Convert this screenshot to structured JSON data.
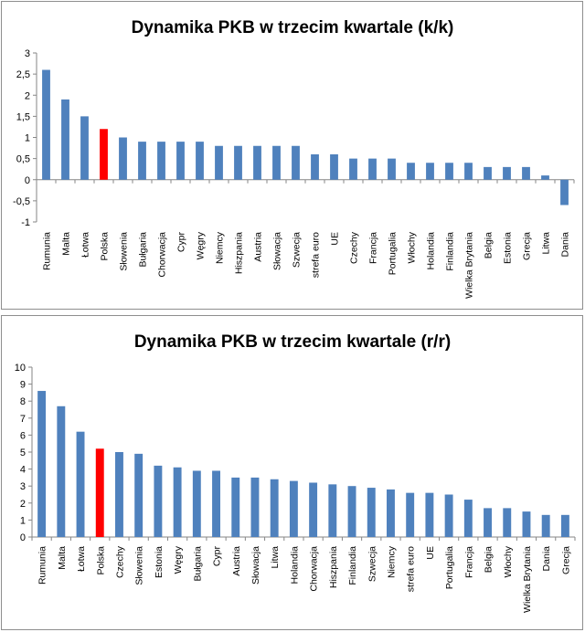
{
  "chart_data": [
    {
      "type": "bar",
      "title": "Dynamika PKB w trzecim kwartale (k/k)",
      "categories": [
        "Rumunia",
        "Malta",
        "Łotwa",
        "Polska",
        "Słowenia",
        "Bułgaria",
        "Chorwacja",
        "Cypr",
        "Węgry",
        "Niemcy",
        "Hiszpania",
        "Austria",
        "Słowacja",
        "Szwecja",
        "strefa euro",
        "UE",
        "Czechy",
        "Francja",
        "Portugalia",
        "Włochy",
        "Holandia",
        "Finlandia",
        "Wielka Brytania",
        "Belgia",
        "Estonia",
        "Grecja",
        "Litwa",
        "Dania"
      ],
      "values": [
        2.6,
        1.9,
        1.5,
        1.2,
        1.0,
        0.9,
        0.9,
        0.9,
        0.9,
        0.8,
        0.8,
        0.8,
        0.8,
        0.8,
        0.6,
        0.6,
        0.5,
        0.5,
        0.5,
        0.4,
        0.4,
        0.4,
        0.4,
        0.3,
        0.3,
        0.3,
        0.1,
        -0.6
      ],
      "ylim": [
        -1,
        3
      ],
      "yticks": [
        "-1",
        "-0,5",
        "0",
        "0,5",
        "1",
        "1,5",
        "2",
        "2,5",
        "3"
      ],
      "ytick_values": [
        -1,
        -0.5,
        0,
        0.5,
        1,
        1.5,
        2,
        2.5,
        3
      ],
      "highlight": "Polska",
      "bar_color": "#4f81bd",
      "highlight_color": "#ff0000",
      "xlabel": "",
      "ylabel": "",
      "grid": false,
      "legend": "none"
    },
    {
      "type": "bar",
      "title": "Dynamika PKB w trzecim kwartale (r/r)",
      "categories": [
        "Rumunia",
        "Malta",
        "Łotwa",
        "Polska",
        "Czechy",
        "Słowenia",
        "Estonia",
        "Węgry",
        "Bułgaria",
        "Cypr",
        "Austria",
        "Słowacja",
        "Litwa",
        "Holandia",
        "Chorwacja",
        "Hiszpania",
        "Finlandia",
        "Szwecja",
        "Niemcy",
        "strefa euro",
        "UE",
        "Portugalia",
        "Francja",
        "Belgia",
        "Włochy",
        "Wielka Brytania",
        "Dania",
        "Grecja"
      ],
      "values": [
        8.6,
        7.7,
        6.2,
        5.2,
        5.0,
        4.9,
        4.2,
        4.1,
        3.9,
        3.9,
        3.5,
        3.5,
        3.4,
        3.3,
        3.2,
        3.1,
        3.0,
        2.9,
        2.8,
        2.6,
        2.6,
        2.5,
        2.2,
        1.7,
        1.7,
        1.5,
        1.3,
        1.3
      ],
      "ylim": [
        0,
        10
      ],
      "yticks": [
        "0",
        "1",
        "2",
        "3",
        "4",
        "5",
        "6",
        "7",
        "8",
        "9",
        "10"
      ],
      "ytick_values": [
        0,
        1,
        2,
        3,
        4,
        5,
        6,
        7,
        8,
        9,
        10
      ],
      "highlight": "Polska",
      "bar_color": "#4f81bd",
      "highlight_color": "#ff0000",
      "xlabel": "",
      "ylabel": "",
      "grid": false,
      "legend": "none"
    }
  ]
}
